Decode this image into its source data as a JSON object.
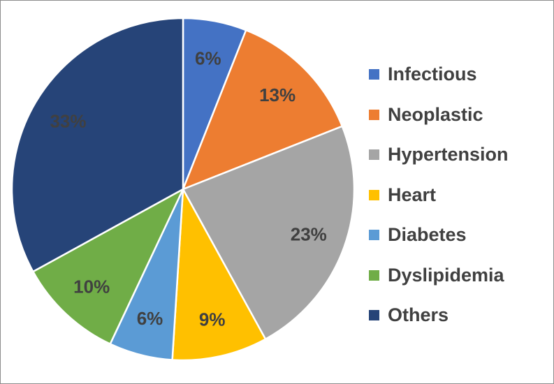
{
  "chart_data": {
    "type": "pie",
    "title": "",
    "legend": "right",
    "start_angle": "12 o'clock",
    "direction": "clockwise",
    "slices": [
      {
        "name": "Infectious",
        "value": 6,
        "label": "6%",
        "color": "#4472c4"
      },
      {
        "name": "Neoplastic",
        "value": 13,
        "label": "13%",
        "color": "#ed7d31"
      },
      {
        "name": "Hypertension",
        "value": 23,
        "label": "23%",
        "color": "#a5a5a5"
      },
      {
        "name": "Heart",
        "value": 9,
        "label": "9%",
        "color": "#ffc000"
      },
      {
        "name": "Diabetes",
        "value": 6,
        "label": "6%",
        "color": "#5b9bd5"
      },
      {
        "name": "Dyslipidemia",
        "value": 10,
        "label": "10%",
        "color": "#70ad47"
      },
      {
        "name": "Others",
        "value": 33,
        "label": "33%",
        "color": "#264478"
      }
    ]
  }
}
